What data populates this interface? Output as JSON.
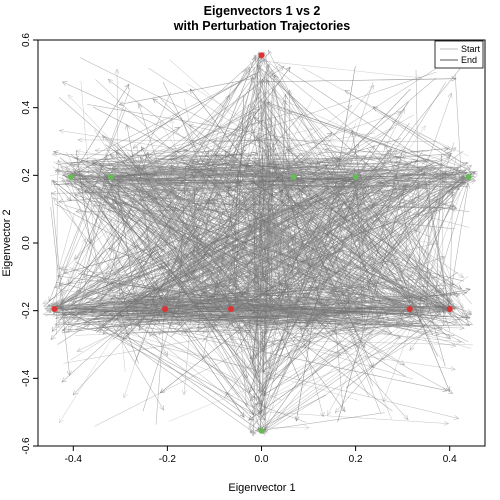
{
  "chart_data": {
    "type": "scatter",
    "title": "Eigenvectors 1 vs 2",
    "subtitle": "with Perturbation Trajectories",
    "xlabel": "Eigenvector 1",
    "ylabel": "Eigenvector 2",
    "xlim": [
      -0.475,
      0.475
    ],
    "ylim": [
      -0.6,
      0.6
    ],
    "x_ticks": [
      -0.4,
      -0.2,
      0.0,
      0.2,
      0.4
    ],
    "x_tick_labels": [
      "-0.4",
      "-0.2",
      "0.0",
      "0.2",
      "0.4"
    ],
    "y_ticks": [
      -0.6,
      -0.4,
      -0.2,
      0.0,
      0.2,
      0.4,
      0.6
    ],
    "y_tick_labels": [
      "-0.6",
      "-0.4",
      "-0.2",
      "0.0",
      "0.2",
      "0.4",
      "0.6"
    ],
    "grid": false,
    "legend_position": "top-right",
    "legend": [
      {
        "label": "Start",
        "color": "#bdbdbd"
      },
      {
        "label": "End",
        "color": "#555555"
      }
    ],
    "series": [
      {
        "color": "#66bb55",
        "points": [
          {
            "x": -0.405,
            "y": 0.195
          },
          {
            "x": -0.32,
            "y": 0.195
          },
          {
            "x": 0.068,
            "y": 0.195
          },
          {
            "x": 0.2,
            "y": 0.195
          },
          {
            "x": 0.44,
            "y": 0.195
          },
          {
            "x": 0.0,
            "y": -0.555
          }
        ]
      },
      {
        "color": "#dd3333",
        "points": [
          {
            "x": 0.0,
            "y": 0.555
          },
          {
            "x": -0.44,
            "y": -0.195
          },
          {
            "x": -0.205,
            "y": -0.195
          },
          {
            "x": -0.065,
            "y": -0.195
          },
          {
            "x": 0.315,
            "y": -0.195
          },
          {
            "x": 0.4,
            "y": -0.195
          }
        ]
      }
    ],
    "trajectory_color_start": "#bdbdbd",
    "trajectory_color_end": "#555555"
  }
}
